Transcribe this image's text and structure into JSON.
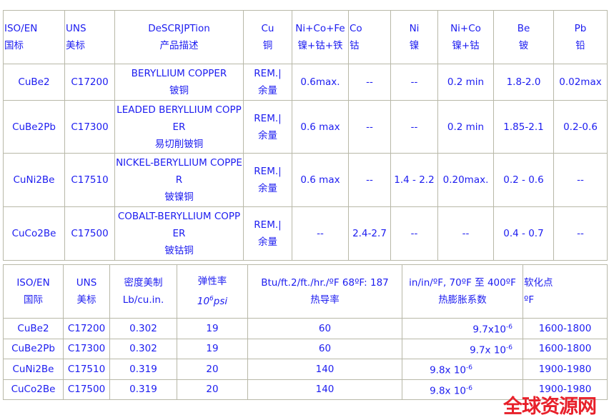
{
  "table1": {
    "headers": [
      [
        "ISO/EN",
        "国标"
      ],
      [
        "UNS",
        "美标"
      ],
      [
        "DeSCRJPTion",
        "产品描述"
      ],
      [
        "Cu",
        "铜"
      ],
      [
        "Ni+Co+Fe 镍+钴+铁"
      ],
      [
        "Co",
        "钴"
      ],
      [
        "Ni",
        "镍"
      ],
      [
        "Ni+Co",
        "镍+钴"
      ],
      [
        "Be",
        "铍"
      ],
      [
        "Pb",
        "铅"
      ]
    ],
    "rows": [
      [
        "CuBe2",
        "C17200",
        "BERYLLIUM COPPER|铍铜",
        "REM.|余量",
        "0.6max.",
        "--",
        "--",
        "0.2 min",
        "1.8-2.0",
        "0.02max"
      ],
      [
        "CuBe2Pb",
        "C17300",
        "LEADED BERYLLIUM COPPER|易切削铍铜",
        "REM.|余量",
        "0.6 max",
        "--",
        "--",
        "0.2 min",
        "1.85-2.1",
        "0.2-0.6"
      ],
      [
        "CuNi2Be",
        "C17510",
        "NICKEL-BERYLLIUM COPPER|铍镍铜",
        "REM.|余量",
        "0.6 max",
        "--",
        "1.4 - 2.2",
        "0.20max.",
        "0.2 - 0.6",
        "--"
      ],
      [
        "CuCo2Be",
        "C17500",
        "COBALT-BERYLLIUM COPPER|铍钴铜",
        "REM.|余量",
        "--",
        "2.4-2.7",
        "--",
        "--",
        "0.4 - 0.7",
        "--"
      ]
    ]
  },
  "table2": {
    "headers": [
      [
        "ISO/EN",
        "国际"
      ],
      [
        "UNS",
        "美标"
      ],
      [
        "密度美制",
        "Lb/cu.in."
      ],
      [
        "弹性率",
        "10",
        "6",
        "psi"
      ],
      [
        "Btu/ft.2/ft./hr./ºF 68ºF: 187",
        "热导率"
      ],
      [
        "in/in/ºF, 70ºF 至 400ºF",
        "热膨胀系数"
      ],
      [
        "软化点",
        "ºF"
      ]
    ],
    "rows": [
      [
        "CuBe2",
        "C17200",
        "0.302",
        "19",
        "60",
        "9.7x10",
        "-6",
        "1600-1800"
      ],
      [
        "CuBe2Pb",
        "C17300",
        "0.302",
        "19",
        "60",
        "9.7x 10",
        "-6",
        "1600-1800"
      ],
      [
        "CuNi2Be",
        "C17510",
        "0.319",
        "20",
        "140",
        "9.8x 10",
        "-6",
        "1900-1980"
      ],
      [
        "CuCo2Be",
        "C17500",
        "0.319",
        "20",
        "140",
        "9.8x 10",
        "-6",
        "1900-1980"
      ]
    ]
  },
  "watermark": "全球资源网",
  "colors": {
    "text": "#1c1cf0",
    "border": "#b8b8a8",
    "watermark": "#e8202a"
  }
}
